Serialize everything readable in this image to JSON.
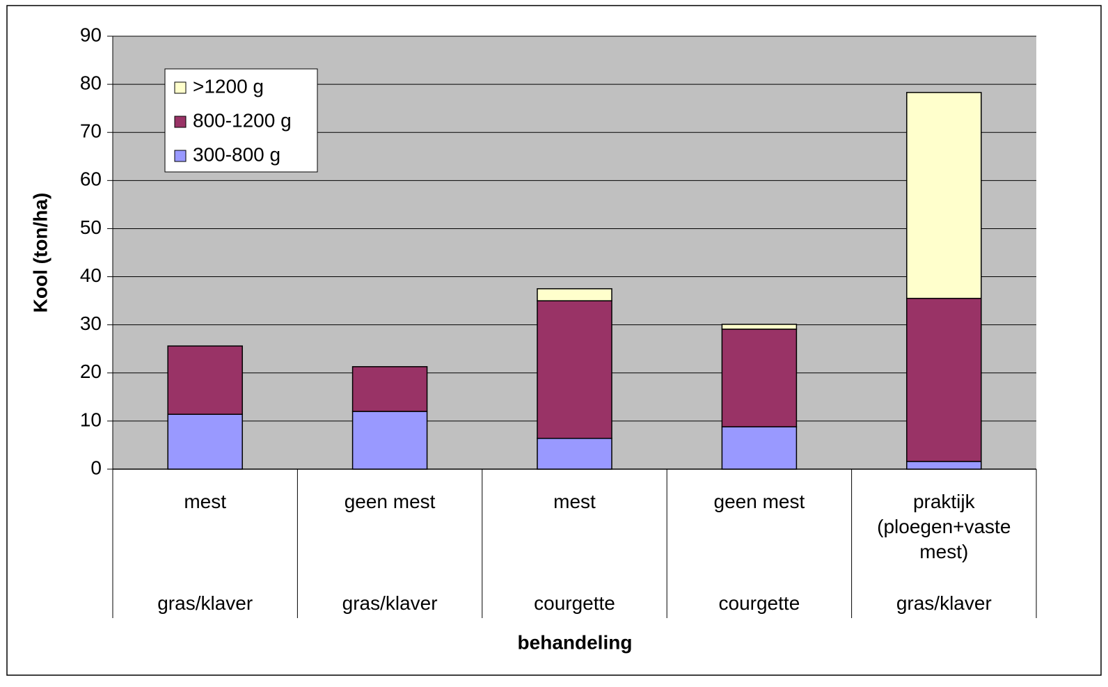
{
  "chart_data": {
    "type": "bar",
    "stacked": true,
    "y_label": "Kool (ton/ha)",
    "x_label": "behandeling",
    "categories": [
      "mest",
      "geen mest",
      "mest",
      "geen mest",
      "praktijk (ploegen+vaste mest)"
    ],
    "groups": [
      "gras/klaver",
      "gras/klaver",
      "courgette",
      "courgette",
      "gras/klaver"
    ],
    "series": [
      {
        "name": "300-800 g",
        "color": "#9999ff",
        "values": [
          11.4,
          12.0,
          6.4,
          8.8,
          1.6
        ]
      },
      {
        "name": "800-1200 g",
        "color": "#993366",
        "values": [
          14.2,
          9.3,
          28.6,
          20.3,
          33.9
        ]
      },
      {
        "name": ">1200 g",
        "color": "#ffffcc",
        "values": [
          0,
          0,
          2.5,
          1.0,
          42.8
        ]
      }
    ],
    "ylim": [
      0,
      90
    ],
    "yticks": [
      0,
      10,
      20,
      30,
      40,
      50,
      60,
      70,
      80,
      90
    ],
    "grid": true,
    "legend": "upper left"
  }
}
